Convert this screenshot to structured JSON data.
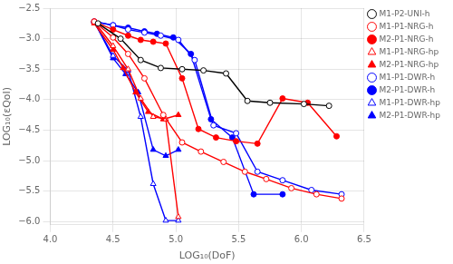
{
  "chart_data": {
    "type": "line",
    "xlabel": "LOG₁₀(DoF)",
    "ylabel": "LOG₁₀(εQoI)",
    "xlim": [
      4.0,
      6.5
    ],
    "ylim": [
      -6.05,
      -2.5
    ],
    "xticks": [
      {
        "value": 4.0,
        "label": "4.0"
      },
      4.5,
      {
        "value": 5.0,
        "label": "5.0"
      },
      5.5,
      {
        "value": 6.0,
        "label": "6.0"
      },
      6.5
    ],
    "yticks": [
      {
        "value": -6.0,
        "label": "−6.0"
      },
      {
        "value": -5.5,
        "label": "−5.5"
      },
      {
        "value": -5.0,
        "label": "−5.0"
      },
      {
        "value": -4.5,
        "label": "−4.5"
      },
      {
        "value": -4.0,
        "label": "−4.0"
      },
      {
        "value": -3.5,
        "label": "−3.5"
      },
      {
        "value": -3.0,
        "label": "−3.0"
      },
      {
        "value": -2.5,
        "label": "−2.5"
      }
    ],
    "grid": true,
    "legend": "upper right",
    "series": [
      {
        "name": "M1-P2-UNI-h",
        "color": "#000000",
        "marker": "circle-open",
        "x": [
          4.38,
          4.56,
          4.72,
          4.88,
          5.05,
          5.22,
          5.4,
          5.57,
          5.75,
          6.02,
          6.22
        ],
        "values": [
          -2.75,
          -3.0,
          -3.35,
          -3.48,
          -3.5,
          -3.52,
          -3.57,
          -4.02,
          -4.05,
          -4.07,
          -4.1
        ]
      },
      {
        "name": "M1-P1-NRG-h",
        "color": "#FF0000",
        "marker": "circle-open",
        "x": [
          4.35,
          4.5,
          4.62,
          4.75,
          4.9,
          5.05,
          5.2,
          5.38,
          5.55,
          5.72,
          5.92,
          6.12,
          6.32
        ],
        "values": [
          -2.72,
          -2.98,
          -3.25,
          -3.65,
          -4.25,
          -4.7,
          -4.85,
          -5.02,
          -5.18,
          -5.3,
          -5.45,
          -5.55,
          -5.62
        ]
      },
      {
        "name": "M2-P1-NRG-h",
        "color": "#FF0000",
        "marker": "circle-filled",
        "x": [
          4.35,
          4.5,
          4.62,
          4.72,
          4.82,
          4.92,
          5.05,
          5.18,
          5.32,
          5.48,
          5.65,
          5.85,
          6.05,
          6.28
        ],
        "values": [
          -2.72,
          -2.85,
          -2.95,
          -3.02,
          -3.05,
          -3.08,
          -3.65,
          -4.48,
          -4.62,
          -4.68,
          -4.72,
          -3.98,
          -4.05,
          -4.6
        ]
      },
      {
        "name": "M1-P1-NRG-hp",
        "color": "#FF0000",
        "marker": "triangle-open",
        "x": [
          4.35,
          4.5,
          4.62,
          4.72,
          4.82,
          4.92,
          5.02
        ],
        "values": [
          -2.72,
          -3.12,
          -3.5,
          -3.98,
          -4.28,
          -4.32,
          -5.92
        ]
      },
      {
        "name": "M2-P1-NRG-hp",
        "color": "#FF0000",
        "marker": "triangle-filled",
        "x": [
          4.35,
          4.5,
          4.58,
          4.68,
          4.78,
          4.9,
          5.02
        ],
        "values": [
          -2.75,
          -3.18,
          -3.48,
          -3.88,
          -4.2,
          -4.32,
          -4.25
        ]
      },
      {
        "name": "M1-P1-DWR-h",
        "color": "#0000FF",
        "marker": "circle-open",
        "x": [
          4.35,
          4.5,
          4.62,
          4.75,
          4.88,
          5.02,
          5.15,
          5.3,
          5.48,
          5.65,
          5.85,
          6.08,
          6.32
        ],
        "values": [
          -2.72,
          -2.78,
          -2.85,
          -2.9,
          -2.95,
          -3.02,
          -3.35,
          -4.42,
          -4.55,
          -5.18,
          -5.32,
          -5.48,
          -5.55
        ]
      },
      {
        "name": "M2-P1-DWR-h",
        "color": "#0000FF",
        "marker": "circle-filled",
        "x": [
          4.35,
          4.5,
          4.62,
          4.75,
          4.85,
          4.98,
          5.12,
          5.28,
          5.45,
          5.62,
          5.85
        ],
        "values": [
          -2.72,
          -2.78,
          -2.82,
          -2.88,
          -2.92,
          -2.98,
          -3.25,
          -4.32,
          -4.62,
          -5.55,
          -5.55
        ]
      },
      {
        "name": "M1-P1-DWR-hp",
        "color": "#0000FF",
        "marker": "triangle-open",
        "x": [
          4.35,
          4.5,
          4.62,
          4.72,
          4.82,
          4.92,
          5.02
        ],
        "values": [
          -2.72,
          -3.28,
          -3.52,
          -4.28,
          -5.38,
          -5.98,
          -5.98
        ]
      },
      {
        "name": "M2-P1-DWR-hp",
        "color": "#0000FF",
        "marker": "triangle-filled",
        "x": [
          4.35,
          4.5,
          4.6,
          4.7,
          4.82,
          4.92,
          5.02
        ],
        "values": [
          -2.72,
          -3.32,
          -3.58,
          -3.88,
          -4.82,
          -4.92,
          -4.82
        ]
      }
    ]
  }
}
